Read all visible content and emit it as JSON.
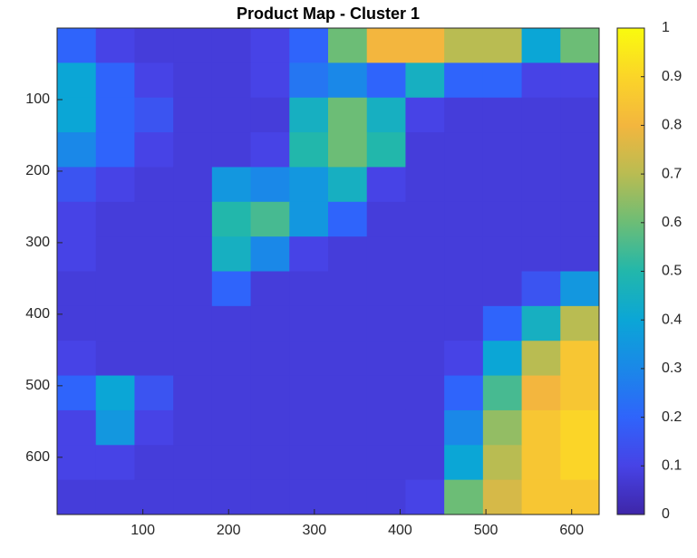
{
  "chart_data": {
    "type": "heatmap",
    "title": "Product Map - Cluster 1",
    "xlim": [
      0,
      632
    ],
    "ylim": [
      0,
      680
    ],
    "y_reversed": true,
    "xticks": [
      100,
      200,
      300,
      400,
      500,
      600
    ],
    "yticks": [
      100,
      200,
      300,
      400,
      500,
      600
    ],
    "clim": [
      0,
      1
    ],
    "cticks": [
      0,
      0.1,
      0.2,
      0.3,
      0.4,
      0.5,
      0.6,
      0.7,
      0.8,
      0.9,
      1
    ],
    "colormap": [
      "#3e26a8",
      "#4743e6",
      "#2f64fb",
      "#1a88e8",
      "#0ba6d6",
      "#22b7ab",
      "#6cbd76",
      "#b9bc52",
      "#f3b63e",
      "#fbd528",
      "#f9fb0e"
    ],
    "values": [
      [
        0.2,
        0.1,
        0.08,
        0.08,
        0.08,
        0.1,
        0.2,
        0.6,
        0.8,
        0.8,
        0.7,
        0.7,
        0.4,
        0.6
      ],
      [
        0.4,
        0.2,
        0.1,
        0.08,
        0.08,
        0.1,
        0.25,
        0.3,
        0.2,
        0.45,
        0.2,
        0.2,
        0.1,
        0.1
      ],
      [
        0.4,
        0.2,
        0.15,
        0.08,
        0.08,
        0.08,
        0.45,
        0.6,
        0.45,
        0.1,
        0.08,
        0.08,
        0.08,
        0.08
      ],
      [
        0.3,
        0.2,
        0.1,
        0.08,
        0.08,
        0.1,
        0.5,
        0.6,
        0.5,
        0.08,
        0.08,
        0.08,
        0.08,
        0.08
      ],
      [
        0.15,
        0.1,
        0.08,
        0.08,
        0.35,
        0.3,
        0.35,
        0.45,
        0.1,
        0.08,
        0.08,
        0.08,
        0.08,
        0.08
      ],
      [
        0.1,
        0.08,
        0.08,
        0.08,
        0.5,
        0.55,
        0.35,
        0.2,
        0.08,
        0.08,
        0.08,
        0.08,
        0.08,
        0.08
      ],
      [
        0.1,
        0.08,
        0.08,
        0.08,
        0.45,
        0.3,
        0.1,
        0.08,
        0.08,
        0.08,
        0.08,
        0.08,
        0.08,
        0.08
      ],
      [
        0.08,
        0.08,
        0.08,
        0.08,
        0.2,
        0.08,
        0.08,
        0.08,
        0.08,
        0.08,
        0.08,
        0.08,
        0.15,
        0.35
      ],
      [
        0.08,
        0.08,
        0.08,
        0.08,
        0.08,
        0.08,
        0.08,
        0.08,
        0.08,
        0.08,
        0.08,
        0.2,
        0.45,
        0.7
      ],
      [
        0.1,
        0.08,
        0.08,
        0.08,
        0.08,
        0.08,
        0.08,
        0.08,
        0.08,
        0.08,
        0.1,
        0.4,
        0.7,
        0.85
      ],
      [
        0.2,
        0.4,
        0.15,
        0.08,
        0.08,
        0.08,
        0.08,
        0.08,
        0.08,
        0.08,
        0.2,
        0.55,
        0.8,
        0.85
      ],
      [
        0.1,
        0.35,
        0.1,
        0.08,
        0.08,
        0.08,
        0.08,
        0.08,
        0.08,
        0.08,
        0.3,
        0.65,
        0.85,
        0.9
      ],
      [
        0.1,
        0.1,
        0.08,
        0.08,
        0.08,
        0.08,
        0.08,
        0.08,
        0.08,
        0.08,
        0.4,
        0.7,
        0.85,
        0.9
      ],
      [
        0.08,
        0.08,
        0.08,
        0.08,
        0.08,
        0.08,
        0.08,
        0.08,
        0.08,
        0.1,
        0.6,
        0.75,
        0.85,
        0.85
      ]
    ]
  }
}
